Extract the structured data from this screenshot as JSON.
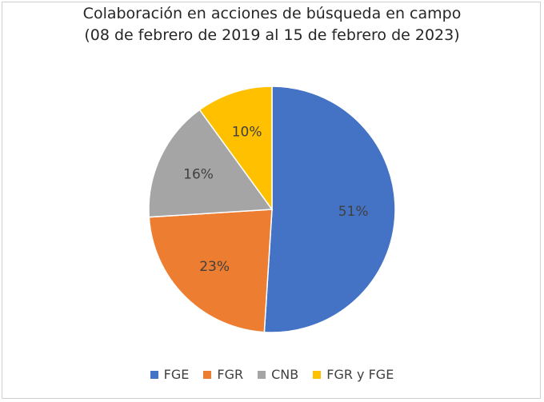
{
  "chart_data": {
    "type": "pie",
    "title": "Colaboración en acciones de búsqueda en campo",
    "subtitle": "(08 de febrero de 2019 al 15 de febrero de 2023)",
    "categories": [
      "FGE",
      "FGR",
      "CNB",
      "FGR y FGE"
    ],
    "values": [
      51,
      23,
      16,
      10
    ],
    "labels": [
      "51%",
      "23%",
      "16%",
      "10%"
    ],
    "colors": [
      "#4472C4",
      "#ED7D31",
      "#A5A5A5",
      "#FFC000"
    ],
    "legend_position": "bottom"
  }
}
